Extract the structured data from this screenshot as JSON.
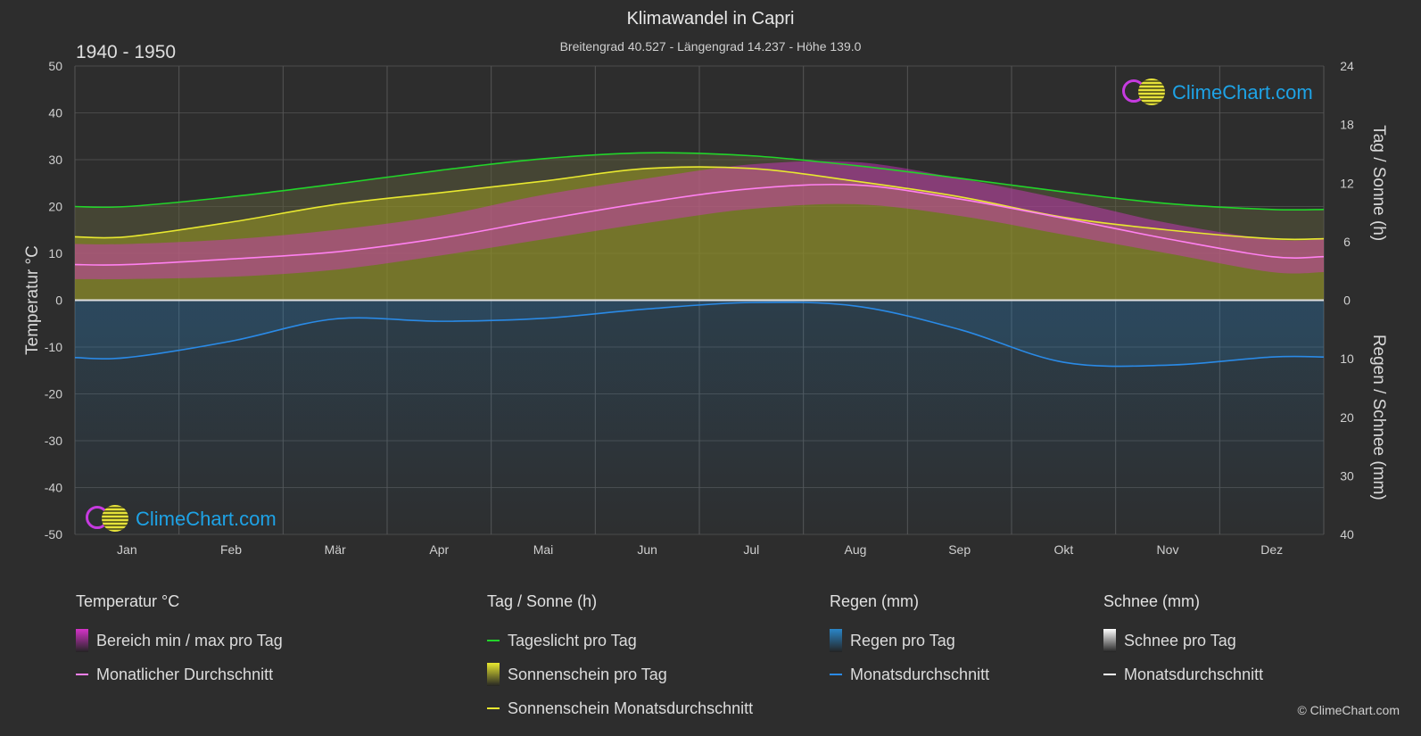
{
  "header": {
    "title": "Klimawandel in Capri",
    "subtitle": "Breitengrad 40.527 - Längengrad 14.237 - Höhe 139.0",
    "period": "1940 - 1950"
  },
  "brand": {
    "logo_text": "ClimeChart.com",
    "copyright": "© ClimeChart.com"
  },
  "colors": {
    "background": "#2d2d2d",
    "daylight": "#22d42a",
    "sunshine_line": "#e8e830",
    "sunshine_fill": "#8c8c2a",
    "temp_range": "#d433c8",
    "temp_avg": "#ff80f0",
    "rain": "#2a86c8",
    "rain_avg": "#2a8ae6",
    "snow_avg": "#ffffff"
  },
  "chart_data": {
    "type": "area",
    "title": "Klimawandel in Capri",
    "x_categories": [
      "Jan",
      "Feb",
      "Mär",
      "Apr",
      "Mai",
      "Jun",
      "Jul",
      "Aug",
      "Sep",
      "Okt",
      "Nov",
      "Dez"
    ],
    "axes": {
      "left": {
        "label": "Temperatur °C",
        "min": -50,
        "max": 50,
        "ticks": [
          "50",
          "40",
          "30",
          "20",
          "10",
          "0",
          "-10",
          "-20",
          "-30",
          "-40",
          "-50"
        ]
      },
      "right_top": {
        "label": "Tag / Sonne (h)",
        "min": 0,
        "max": 24,
        "ticks": [
          "24",
          "18",
          "12",
          "6",
          "0"
        ]
      },
      "right_bottom": {
        "label": "Regen / Schnee (mm)",
        "min": 0,
        "max": 40,
        "ticks": [
          "0",
          "10",
          "20",
          "30",
          "40"
        ]
      }
    },
    "grid": true,
    "series": [
      {
        "name": "Tageslicht pro Tag",
        "unit": "h",
        "values": [
          9.6,
          10.6,
          11.9,
          13.3,
          14.5,
          15.1,
          14.8,
          13.8,
          12.5,
          11.1,
          9.9,
          9.3
        ]
      },
      {
        "name": "Sonnenschein Monatsdurchschnitt",
        "unit": "h",
        "values": [
          6.5,
          8.0,
          9.8,
          11.0,
          12.2,
          13.5,
          13.5,
          12.2,
          10.6,
          8.5,
          7.2,
          6.3
        ]
      },
      {
        "name": "Monatlicher Durchschnitt",
        "unit": "°C",
        "values": [
          7.6,
          8.8,
          10.3,
          13.2,
          17.2,
          20.9,
          23.8,
          24.6,
          21.6,
          17.5,
          13.1,
          9.3
        ]
      },
      {
        "name": "Regen Monatsdurchschnitt",
        "unit": "mm",
        "values": [
          9.8,
          7.0,
          3.2,
          3.6,
          3.1,
          1.5,
          0.4,
          1.0,
          5.0,
          10.6,
          11.1,
          9.7
        ]
      },
      {
        "name": "Schnee Monatsdurchschnitt",
        "unit": "mm",
        "values": [
          0,
          0,
          0,
          0,
          0,
          0,
          0,
          0,
          0,
          0,
          0,
          0
        ]
      }
    ],
    "temp_band_daily_approx": {
      "min": [
        4.5,
        5.0,
        6.5,
        9.5,
        13.0,
        16.5,
        19.5,
        20.5,
        18.0,
        14.0,
        10.0,
        6.0
      ],
      "max": [
        12.0,
        13.0,
        15.0,
        18.0,
        22.5,
        26.0,
        29.0,
        29.5,
        26.0,
        21.5,
        16.5,
        13.0
      ]
    }
  },
  "legend": {
    "groups": [
      {
        "heading": "Temperatur °C",
        "items": [
          {
            "label": "Bereich min / max pro Tag",
            "kind": "box",
            "color_key": "temp_range"
          },
          {
            "label": "Monatlicher Durchschnitt",
            "kind": "line",
            "color_key": "temp_avg"
          }
        ]
      },
      {
        "heading": "Tag / Sonne (h)",
        "items": [
          {
            "label": "Tageslicht pro Tag",
            "kind": "line",
            "color_key": "daylight"
          },
          {
            "label": "Sonnenschein pro Tag",
            "kind": "box",
            "color_key": "sunshine_line"
          },
          {
            "label": "Sonnenschein Monatsdurchschnitt",
            "kind": "line",
            "color_key": "sunshine_line"
          }
        ]
      },
      {
        "heading": "Regen (mm)",
        "items": [
          {
            "label": "Regen pro Tag",
            "kind": "box",
            "color_key": "rain"
          },
          {
            "label": "Monatsdurchschnitt",
            "kind": "line",
            "color_key": "rain_avg"
          }
        ]
      },
      {
        "heading": "Schnee (mm)",
        "items": [
          {
            "label": "Schnee pro Tag",
            "kind": "box",
            "color_key": "snow_avg"
          },
          {
            "label": "Monatsdurchschnitt",
            "kind": "line",
            "color_key": "snow_avg"
          }
        ]
      }
    ]
  }
}
